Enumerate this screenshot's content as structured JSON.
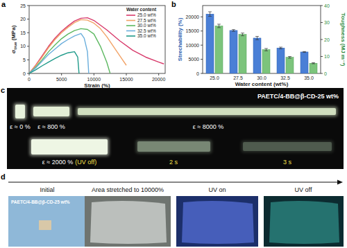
{
  "panel_labels": [
    "a",
    "b",
    "c",
    "d"
  ],
  "chart_data": [
    {
      "type": "line",
      "xlabel": "Strain (%)",
      "ylabel": {
        "symbol": "σ",
        "subscript": "true",
        "unit": "(MPa)"
      },
      "legend_title": "Water content",
      "legend": "upper right",
      "xlim": [
        0,
        21000
      ],
      "ylim": [
        0,
        25
      ],
      "xticks": [
        0,
        5000,
        10000,
        15000,
        20000
      ],
      "yticks": [
        0,
        5,
        10,
        15,
        20,
        25
      ],
      "series": [
        {
          "name": "25.0 wt%",
          "color": "#d83a6b",
          "x": [
            0,
            1000,
            2000,
            3000,
            4000,
            5000,
            6000,
            7000,
            8000,
            9000,
            10000,
            12000,
            14000,
            16000,
            18000,
            20000,
            20800
          ],
          "values": [
            0,
            3,
            6.5,
            10,
            13,
            15.5,
            17.5,
            19.3,
            20.3,
            20.5,
            19.5,
            16,
            12,
            8.5,
            6,
            4.2,
            3.5
          ]
        },
        {
          "name": "27.5 wt%",
          "color": "#f2a266",
          "x": [
            0,
            1000,
            2000,
            3000,
            4000,
            5000,
            6000,
            7000,
            8000,
            9000,
            10000,
            11000,
            12000,
            13000,
            14000,
            15000
          ],
          "values": [
            0,
            2.8,
            6,
            9.5,
            12.5,
            15,
            17,
            18.7,
            19.8,
            19.6,
            18.5,
            16.5,
            13.5,
            10,
            6.5,
            3
          ]
        },
        {
          "name": "30.0 wt%",
          "color": "#5cb860",
          "x": [
            0,
            1000,
            2000,
            3000,
            4000,
            5000,
            6000,
            7000,
            8000,
            9000,
            10000,
            11000,
            12000,
            12500
          ],
          "values": [
            0,
            2.3,
            5,
            8,
            10.5,
            12.8,
            14.5,
            15.8,
            16.5,
            16.2,
            14.5,
            10,
            4,
            0
          ]
        },
        {
          "name": "32.5 wt%",
          "color": "#6aaedc",
          "x": [
            0,
            1000,
            2000,
            3000,
            4000,
            5000,
            6000,
            7000,
            8000,
            8500,
            9000,
            9200
          ],
          "values": [
            0,
            2,
            4.5,
            7,
            9,
            11,
            12.5,
            13.8,
            14.7,
            13,
            8,
            0
          ]
        },
        {
          "name": "35.0 wt%",
          "color": "#1f9a8a",
          "x": [
            0,
            1000,
            2000,
            3000,
            4000,
            5000,
            6000,
            7000,
            7500,
            7700
          ],
          "values": [
            0,
            1.3,
            2.8,
            4.2,
            5.5,
            6.7,
            7.6,
            8,
            6,
            0
          ]
        }
      ]
    },
    {
      "type": "bar",
      "xlabel": "Water content (wt%)",
      "ylabel": "Strechability (%)",
      "y2label": "Toughness (MJ m⁻³)",
      "categories": [
        "25.0",
        "27.5",
        "30.0",
        "32.5",
        "35.0"
      ],
      "ylim": [
        0,
        24000
      ],
      "yticks": [
        0,
        5000,
        10000,
        15000,
        20000
      ],
      "y2lim": [
        0,
        40
      ],
      "y2ticks": [
        0,
        10,
        20,
        30,
        40
      ],
      "series": [
        {
          "color": "#4a7fd6",
          "values": [
            21000,
            15200,
            12500,
            9000,
            7600
          ],
          "errors": [
            800,
            300,
            600,
            300,
            150
          ]
        },
        {
          "color": "#7cc47c",
          "axis": "y2",
          "values": [
            28,
            23,
            14,
            9.5,
            6
          ],
          "errors": [
            1,
            0.8,
            0.7,
            0.5,
            0.3
          ]
        }
      ]
    }
  ],
  "panel_c": {
    "sample": "PAETC/4-BB@β-CD-25 wt%",
    "top_captions": [
      "ε ≈ 0 %",
      "ε ≈ 800 %",
      "ε ≈ 8000 %"
    ],
    "bottom_captions": [
      {
        "text": "ε ≈ 2000 %",
        "note": "(UV off)"
      },
      {
        "text": "2 s"
      },
      {
        "text": "3 s"
      }
    ]
  },
  "panel_d": {
    "sample": "PAETC/4-BB@β-CD-25 wt%",
    "steps": [
      "Initial",
      "Area stretched to 10000%",
      "UV on",
      "UV off"
    ]
  }
}
